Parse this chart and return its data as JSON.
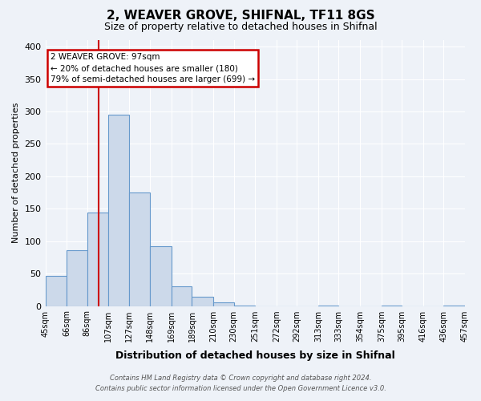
{
  "title": "2, WEAVER GROVE, SHIFNAL, TF11 8GS",
  "subtitle": "Size of property relative to detached houses in Shifnal",
  "bar_heights": [
    47,
    86,
    144,
    295,
    175,
    92,
    30,
    14,
    5,
    1,
    0,
    0,
    0,
    1,
    0,
    0,
    1,
    0,
    0,
    1
  ],
  "bin_edges": [
    45,
    66,
    86,
    107,
    127,
    148,
    169,
    189,
    210,
    230,
    251,
    272,
    292,
    313,
    333,
    354,
    375,
    395,
    416,
    436,
    457
  ],
  "bin_labels": [
    "45sqm",
    "66sqm",
    "86sqm",
    "107sqm",
    "127sqm",
    "148sqm",
    "169sqm",
    "189sqm",
    "210sqm",
    "230sqm",
    "251sqm",
    "272sqm",
    "292sqm",
    "313sqm",
    "333sqm",
    "354sqm",
    "375sqm",
    "395sqm",
    "416sqm",
    "436sqm",
    "457sqm"
  ],
  "bar_color": "#ccd9ea",
  "bar_edge_color": "#6699cc",
  "ylabel": "Number of detached properties",
  "xlabel": "Distribution of detached houses by size in Shifnal",
  "ylim": [
    0,
    410
  ],
  "yticks": [
    0,
    50,
    100,
    150,
    200,
    250,
    300,
    350,
    400
  ],
  "vline_x": 97,
  "vline_color": "#cc0000",
  "annotation_title": "2 WEAVER GROVE: 97sqm",
  "annotation_line1": "← 20% of detached houses are smaller (180)",
  "annotation_line2": "79% of semi-detached houses are larger (699) →",
  "annotation_box_color": "#cc0000",
  "footer_line1": "Contains HM Land Registry data © Crown copyright and database right 2024.",
  "footer_line2": "Contains public sector information licensed under the Open Government Licence v3.0.",
  "background_color": "#eef2f8",
  "grid_color": "#ffffff"
}
